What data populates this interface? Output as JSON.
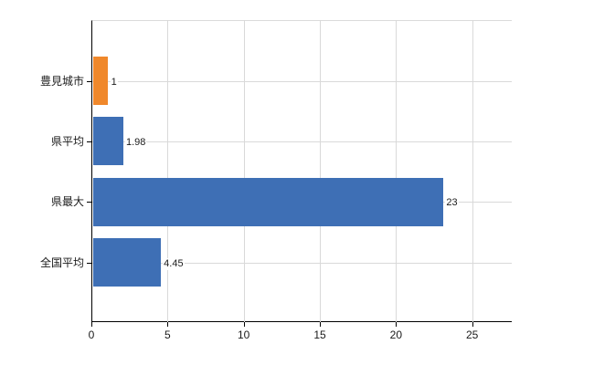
{
  "chart_data": {
    "type": "bar",
    "orientation": "horizontal",
    "categories": [
      "豊見城市",
      "県平均",
      "県最大",
      "全国平均"
    ],
    "values": [
      1,
      1.98,
      23,
      4.45
    ],
    "value_labels": [
      "1",
      "1.98",
      "23",
      "4.45"
    ],
    "bar_colors": [
      "#f0882b",
      "#3e6fb5",
      "#3e6fb5",
      "#3e6fb5"
    ],
    "xticks": [
      0,
      5,
      10,
      15,
      20,
      25
    ],
    "xtick_labels": [
      "0",
      "5",
      "10",
      "15",
      "20",
      "25"
    ],
    "xlim": [
      0,
      27.6
    ],
    "grid": true,
    "legend": "none",
    "colors": {
      "gridline": "#d9d9d9",
      "axis": "#000000",
      "text": "#1a1a1a",
      "background": "#ffffff",
      "highlight_bar": "#f0882b",
      "default_bar": "#3e6fb5"
    }
  }
}
